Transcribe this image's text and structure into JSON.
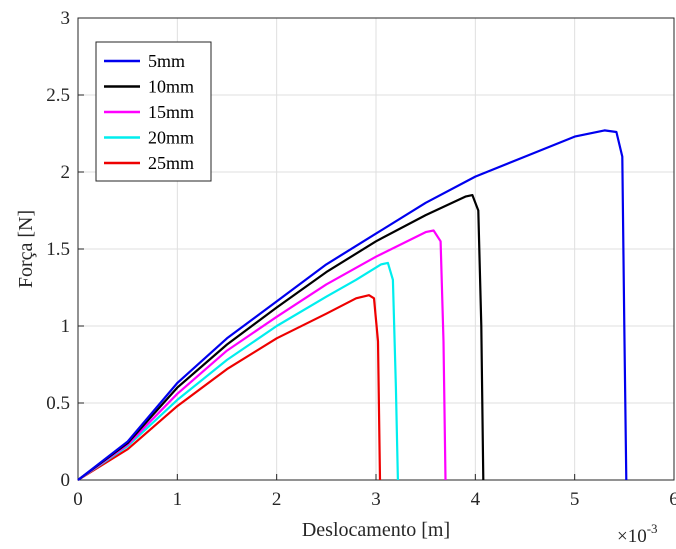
{
  "chart_data": {
    "type": "line",
    "title": "",
    "xlabel": "Deslocamento [m]",
    "ylabel": "Força [N]",
    "x_multiplier_label": "×10",
    "x_multiplier_exponent": "-3",
    "xlim": [
      0,
      6
    ],
    "ylim": [
      0,
      3
    ],
    "xticks": [
      "0",
      "1",
      "2",
      "3",
      "4",
      "5",
      "6"
    ],
    "yticks": [
      "0",
      "0.5",
      "1",
      "1.5",
      "2",
      "2.5",
      "3"
    ],
    "grid": true,
    "legend_position": "top-left",
    "series": [
      {
        "name": "5mm",
        "color": "#0000ee",
        "x": [
          0,
          0.5,
          1,
          1.5,
          2,
          2.5,
          3,
          3.5,
          4,
          4.5,
          5,
          5.3,
          5.42,
          5.48,
          5.5,
          5.52
        ],
        "y": [
          0,
          0.25,
          0.63,
          0.92,
          1.16,
          1.4,
          1.6,
          1.8,
          1.97,
          2.1,
          2.23,
          2.27,
          2.26,
          2.1,
          1.0,
          0
        ]
      },
      {
        "name": "10mm",
        "color": "#000000",
        "x": [
          0,
          0.5,
          1,
          1.5,
          2,
          2.5,
          3,
          3.5,
          3.9,
          3.97,
          4.03,
          4.06,
          4.08
        ],
        "y": [
          0,
          0.24,
          0.6,
          0.88,
          1.12,
          1.35,
          1.55,
          1.72,
          1.84,
          1.85,
          1.75,
          1.0,
          0
        ]
      },
      {
        "name": "15mm",
        "color": "#ff00ff",
        "x": [
          0,
          0.5,
          1,
          1.5,
          2,
          2.5,
          3,
          3.5,
          3.58,
          3.65,
          3.68,
          3.7
        ],
        "y": [
          0,
          0.23,
          0.56,
          0.84,
          1.06,
          1.27,
          1.45,
          1.61,
          1.62,
          1.55,
          0.9,
          0
        ]
      },
      {
        "name": "20mm",
        "color": "#00eeee",
        "x": [
          0,
          0.5,
          1,
          1.5,
          2,
          2.5,
          2.8,
          3.05,
          3.12,
          3.17,
          3.2,
          3.22
        ],
        "y": [
          0,
          0.22,
          0.52,
          0.78,
          1.0,
          1.19,
          1.3,
          1.4,
          1.41,
          1.3,
          0.6,
          0
        ]
      },
      {
        "name": "25mm",
        "color": "#ee0000",
        "x": [
          0,
          0.5,
          1,
          1.5,
          2,
          2.5,
          2.8,
          2.93,
          2.98,
          3.02,
          3.04
        ],
        "y": [
          0,
          0.2,
          0.48,
          0.72,
          0.92,
          1.08,
          1.18,
          1.2,
          1.18,
          0.9,
          0
        ]
      }
    ]
  }
}
